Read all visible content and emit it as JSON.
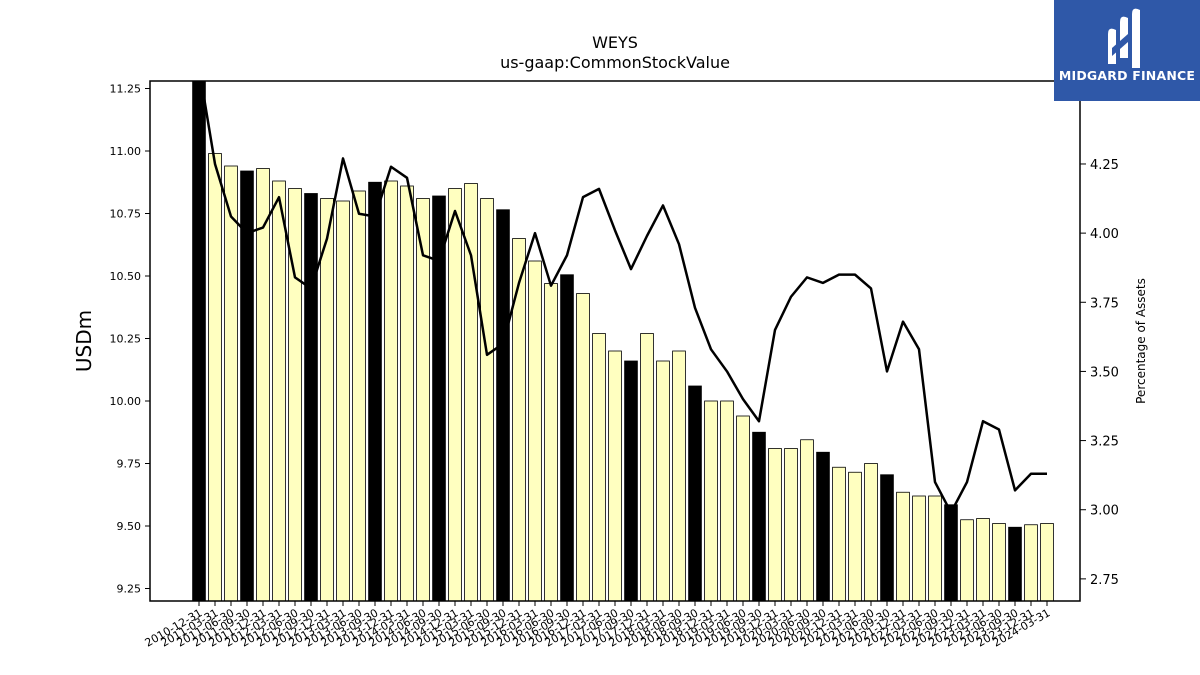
{
  "chart_data": {
    "type": "bar",
    "title": "WEYS",
    "subtitle": "us-gaap:CommonStockValue",
    "ylabel": "USDm",
    "y2label": "Percentage of Assets",
    "ylim": [
      9.2,
      11.28
    ],
    "y2lim": [
      2.67,
      4.55
    ],
    "yticks": [
      "9.25",
      "9.50",
      "9.75",
      "10.00",
      "10.25",
      "10.50",
      "10.75",
      "11.00",
      "11.25"
    ],
    "y2ticks": [
      "2.75",
      "3.00",
      "3.25",
      "3.50",
      "3.75",
      "4.00",
      "4.25"
    ],
    "colors": {
      "bar_highlight": "#000000",
      "bar_normal": "#ffffc0",
      "bar_edge": "#000000",
      "line": "#000000"
    },
    "categories": [
      "2010-12-31",
      "2011-03-31",
      "2011-06-30",
      "2011-09-30",
      "2011-12-31",
      "2012-03-31",
      "2012-06-30",
      "2012-09-30",
      "2012-12-31",
      "2013-03-31",
      "2013-06-30",
      "2013-09-30",
      "2013-12-31",
      "2014-03-31",
      "2014-06-30",
      "2014-09-30",
      "2014-12-31",
      "2015-03-31",
      "2015-06-30",
      "2015-09-30",
      "2015-12-31",
      "2016-03-31",
      "2016-06-30",
      "2016-09-30",
      "2016-12-31",
      "2017-03-31",
      "2017-06-30",
      "2017-09-30",
      "2017-12-31",
      "2018-03-31",
      "2018-06-30",
      "2018-09-30",
      "2018-12-31",
      "2019-03-31",
      "2019-06-30",
      "2019-09-30",
      "2019-12-31",
      "2020-03-31",
      "2020-06-30",
      "2020-09-30",
      "2020-12-31",
      "2021-03-31",
      "2021-06-30",
      "2021-09-30",
      "2021-12-31",
      "2022-03-31",
      "2022-06-30",
      "2022-09-30",
      "2022-12-31",
      "2023-03-31",
      "2023-06-30",
      "2023-09-30",
      "2023-12-31",
      "2024-03-31"
    ],
    "highlight": [
      true,
      false,
      false,
      true,
      false,
      false,
      false,
      true,
      false,
      false,
      false,
      true,
      false,
      false,
      false,
      true,
      false,
      false,
      false,
      true,
      false,
      false,
      false,
      true,
      false,
      false,
      false,
      true,
      false,
      false,
      false,
      true,
      false,
      false,
      false,
      true,
      false,
      false,
      false,
      true,
      false,
      false,
      false,
      true,
      false,
      false,
      false,
      true,
      false,
      false,
      false,
      true,
      false,
      false
    ],
    "series": [
      {
        "axis": "left",
        "values": [
          11.35,
          10.99,
          10.94,
          10.92,
          10.93,
          10.88,
          10.85,
          10.83,
          10.81,
          10.8,
          10.84,
          10.875,
          10.88,
          10.86,
          10.81,
          10.82,
          10.85,
          10.87,
          10.81,
          10.765,
          10.65,
          10.56,
          10.47,
          10.505,
          10.43,
          10.27,
          10.2,
          10.16,
          10.27,
          10.16,
          10.2,
          10.06,
          10.0,
          10.0,
          9.94,
          9.875,
          9.81,
          9.81,
          9.845,
          9.795,
          9.735,
          9.715,
          9.75,
          9.705,
          9.635,
          9.62,
          9.62,
          9.585,
          9.525,
          9.53,
          9.51,
          9.495,
          9.505,
          9.51
        ]
      },
      {
        "axis": "right",
        "values": [
          4.6,
          4.25,
          4.06,
          4.0,
          4.02,
          4.13,
          3.84,
          3.8,
          3.98,
          4.27,
          4.07,
          4.06,
          4.24,
          4.2,
          3.92,
          3.9,
          4.08,
          3.92,
          3.56,
          3.6,
          3.82,
          4.0,
          3.81,
          3.92,
          4.13,
          4.16,
          4.01,
          3.87,
          3.99,
          4.1,
          3.96,
          3.73,
          3.58,
          3.5,
          3.4,
          3.32,
          3.65,
          3.77,
          3.84,
          3.82,
          3.85,
          3.85,
          3.8,
          3.5,
          3.68,
          3.58,
          3.1,
          2.99,
          3.1,
          3.32,
          3.29,
          3.07,
          3.13,
          3.13
        ]
      }
    ]
  },
  "logo": {
    "text": "MIDGARD FINANCE"
  }
}
